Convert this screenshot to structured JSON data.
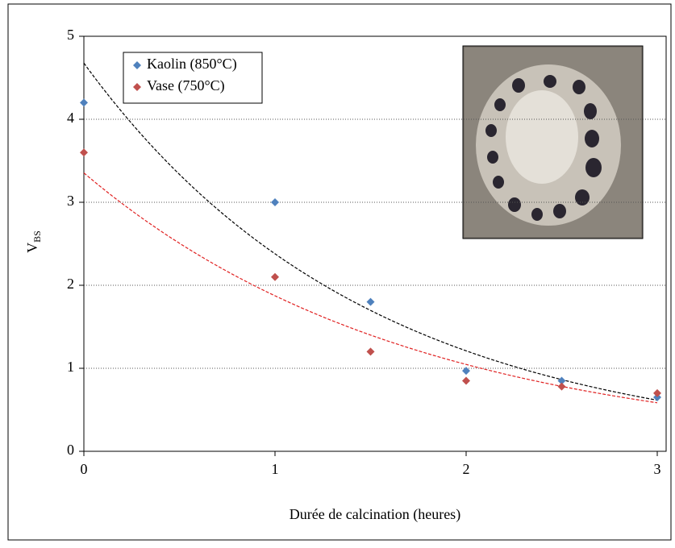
{
  "chart_data": {
    "type": "scatter",
    "xlabel": "Durée de calcination (heures)",
    "ylabel": "V",
    "ylabel_subscript": "BS",
    "xlim": [
      0,
      3
    ],
    "xticks": [
      0,
      1,
      2,
      3
    ],
    "ylim": [
      0,
      5
    ],
    "yticks": [
      0,
      1,
      2,
      3,
      4,
      5
    ],
    "grid": true,
    "legend": "upper left",
    "trendline": "exponential",
    "series": [
      {
        "name": "Kaolin (850°C)",
        "color": "#4f81bd",
        "trendline_color": "#000000",
        "x": [
          0,
          1,
          1.5,
          2,
          2.5,
          3
        ],
        "values": [
          4.2,
          3.0,
          1.8,
          0.97,
          0.85,
          0.65
        ]
      },
      {
        "name": "Vase (750°C)",
        "color": "#c0504d",
        "trendline_color": "#e02020",
        "x": [
          0,
          1,
          1.5,
          2,
          2.5,
          3
        ],
        "values": [
          3.6,
          2.1,
          1.2,
          0.85,
          0.78,
          0.7
        ]
      }
    ]
  }
}
